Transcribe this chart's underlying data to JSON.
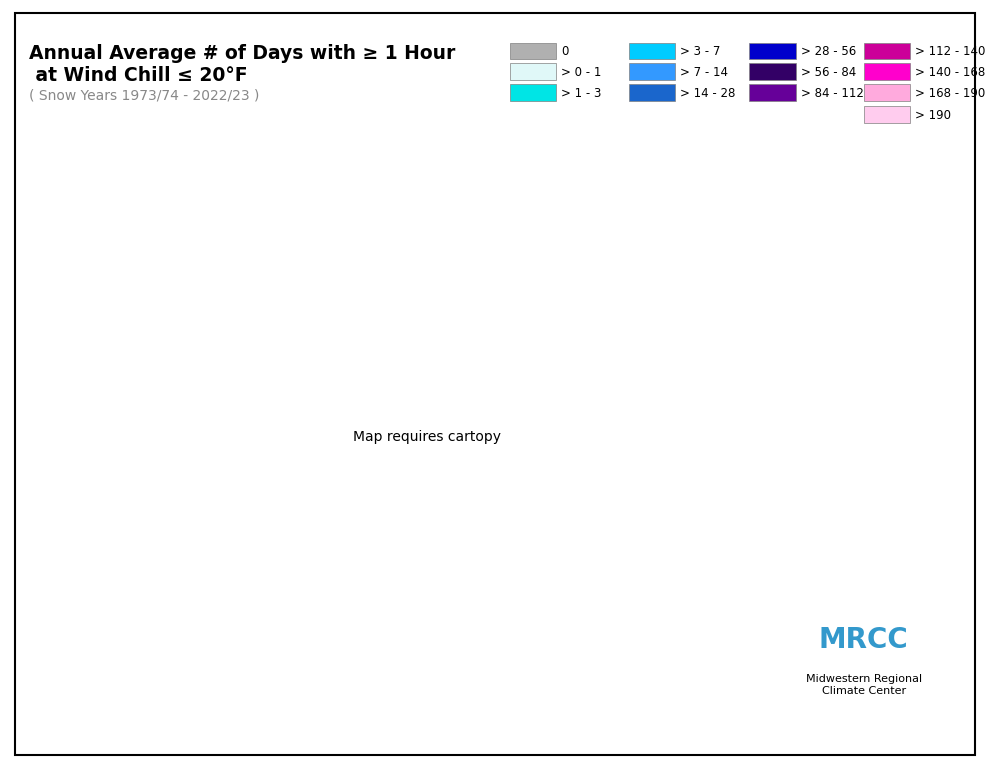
{
  "title_line1": "Annual Average # of Days with ≥ 1 Hour",
  "title_line2": " at Wind Chill ≤ 20°F",
  "subtitle": "( Snow Years 1973/74 - 2022/23 )",
  "legend_entries": [
    {
      "label": "0",
      "color": "#b0b0b0"
    },
    {
      "label": "> 0 - 1",
      "color": "#e0f8f8"
    },
    {
      "label": "> 1 - 3",
      "color": "#00e5e5"
    },
    {
      "label": "> 3 - 7",
      "color": "#00ccff"
    },
    {
      "label": "> 7 - 14",
      "color": "#3399ff"
    },
    {
      "label": "> 14 - 28",
      "color": "#1a66cc"
    },
    {
      "label": "> 28 - 56",
      "color": "#0000cc"
    },
    {
      "label": "> 56 - 84",
      "color": "#330066"
    },
    {
      "label": "> 84 - 112",
      "color": "#660099"
    },
    {
      "label": "> 112 - 140",
      "color": "#cc0099"
    },
    {
      "label": "> 140 - 168",
      "color": "#ff00cc"
    },
    {
      "label": "> 168 - 190",
      "color": "#ffaadd"
    },
    {
      "label": "> 190",
      "color": "#ffccee"
    }
  ],
  "background_color": "#ffffff",
  "border_color": "#000000",
  "title_color": "#000000",
  "subtitle_color": "#888888",
  "mrcc_text_color": "#3399cc",
  "contour_levels": [
    0,
    1,
    3,
    7,
    14,
    28,
    56,
    84,
    112,
    140,
    168,
    190,
    220
  ],
  "contour_colors": [
    "#b0b0b0",
    "#e0f8f8",
    "#00e5e5",
    "#00ccff",
    "#3399ff",
    "#1a66cc",
    "#0000cc",
    "#330066",
    "#660099",
    "#cc0099",
    "#ff00cc",
    "#ffaadd",
    "#ffccee"
  ]
}
